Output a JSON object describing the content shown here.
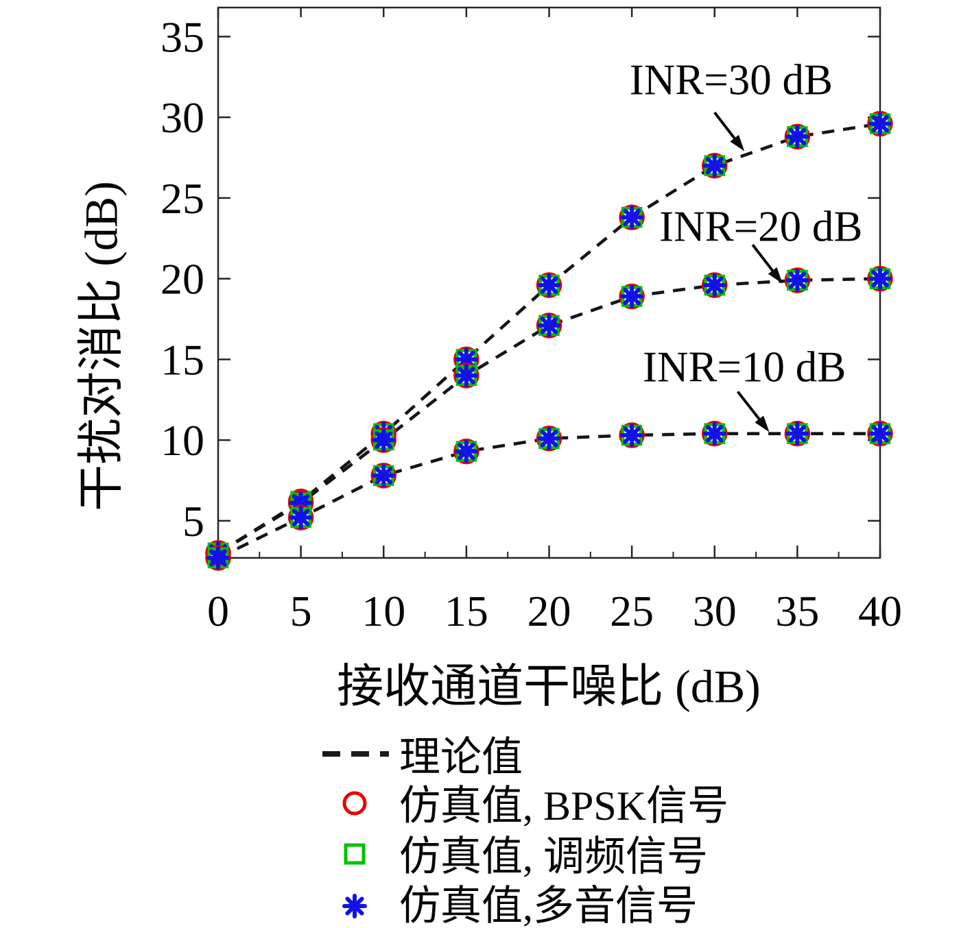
{
  "chart_data": {
    "type": "line",
    "title": "",
    "xlabel": "接收通道干噪比 (dB)",
    "ylabel": "干扰对消比 (dB)",
    "x": [
      0,
      5,
      10,
      15,
      20,
      25,
      30,
      35,
      40
    ],
    "x_ticks": [
      0,
      5,
      10,
      15,
      20,
      25,
      30,
      35,
      40
    ],
    "x_minor_ticks": [
      2.5,
      7.5,
      12.5,
      17.5,
      22.5,
      27.5,
      32.5,
      37.5
    ],
    "y_ticks": [
      5,
      10,
      15,
      20,
      25,
      30,
      35
    ],
    "xlim": [
      0,
      40
    ],
    "ylim": [
      2.7,
      36.8
    ],
    "grid": false,
    "line_color": "#151515",
    "line_style": "dashed",
    "series": [
      {
        "name": "INR=30 dB",
        "values": [
          3.0,
          6.2,
          10.4,
          15.0,
          19.6,
          23.8,
          27.0,
          28.8,
          29.6
        ]
      },
      {
        "name": "INR=20 dB",
        "values": [
          3.0,
          6.1,
          10.0,
          14.0,
          17.1,
          18.9,
          19.6,
          19.9,
          20.0
        ]
      },
      {
        "name": "INR=10 dB",
        "values": [
          2.7,
          5.2,
          7.8,
          9.3,
          10.1,
          10.3,
          10.4,
          10.4,
          10.4
        ]
      }
    ],
    "marker_overlays": [
      {
        "marker": "circle",
        "color": "#ea0000"
      },
      {
        "marker": "square",
        "color": "#00c400"
      },
      {
        "marker": "asterisk",
        "color": "#1212e8"
      }
    ],
    "annotations": [
      {
        "text": "INR=30 dB",
        "text_xy": [
          31.0,
          32.3
        ],
        "arrow_from": [
          30.0,
          30.3
        ],
        "arrow_to": [
          31.5,
          28.3
        ]
      },
      {
        "text": "INR=20 dB",
        "text_xy": [
          32.8,
          23.2
        ],
        "arrow_from": [
          32.3,
          22.1
        ],
        "arrow_to": [
          33.8,
          20.1
        ]
      },
      {
        "text": "INR=10 dB",
        "text_xy": [
          31.8,
          14.5
        ],
        "arrow_from": [
          31.4,
          13.0
        ],
        "arrow_to": [
          33.0,
          10.9
        ]
      }
    ],
    "legend": {
      "position": "below",
      "items": [
        {
          "label": "理论值",
          "glyph": "dashed-line",
          "color": "#1a1a1a"
        },
        {
          "label": "仿真值, BPSK信号",
          "glyph": "circle",
          "color": "#ea0000"
        },
        {
          "label": "仿真值, 调频信号",
          "glyph": "square",
          "color": "#00c400"
        },
        {
          "label": "仿真值,多音信号",
          "glyph": "asterisk",
          "color": "#1212e8"
        }
      ]
    }
  }
}
